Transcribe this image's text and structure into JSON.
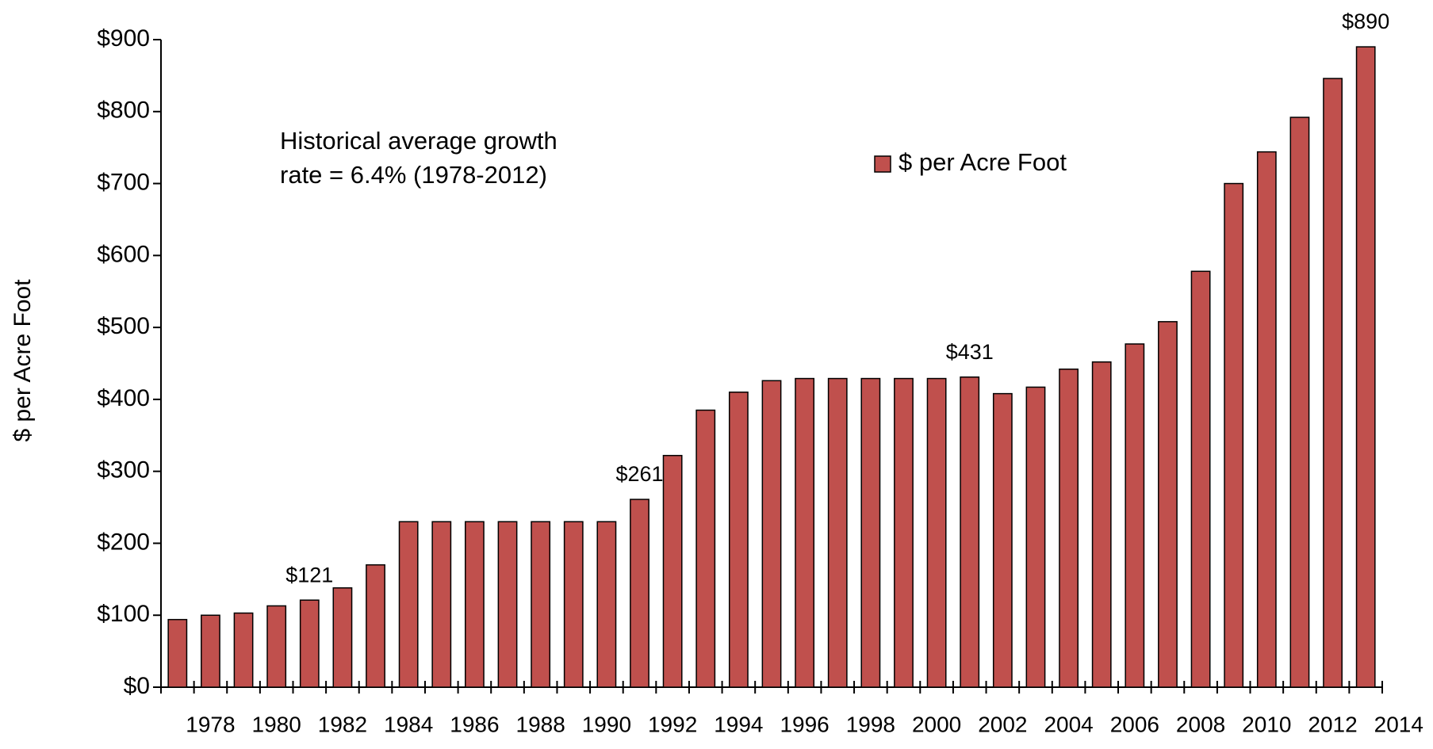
{
  "chart_data": {
    "type": "bar",
    "annotation": [
      "Historical average growth",
      "rate = 6.4% (1978-2012)"
    ],
    "y_label": "$ per Acre Foot",
    "categories": [
      "1978",
      null,
      "1980",
      null,
      "1982",
      null,
      "1984",
      null,
      "1986",
      null,
      "1988",
      null,
      "1990",
      null,
      "1992",
      null,
      "1994",
      null,
      "1996",
      null,
      "1998",
      null,
      "2000",
      null,
      "2002",
      null,
      "2004",
      null,
      "2006",
      null,
      "2008",
      null,
      "2010",
      null,
      "2012",
      null,
      "2014"
    ],
    "series": [
      {
        "name": "$ per Acre Foot",
        "color": "#c0504d",
        "values": [
          94,
          100,
          103,
          113,
          121,
          138,
          170,
          230,
          230,
          230,
          230,
          230,
          230,
          230,
          261,
          322,
          385,
          410,
          426,
          429,
          429,
          429,
          429,
          429,
          431,
          408,
          417,
          442,
          452,
          477,
          508,
          578,
          700,
          744,
          792,
          846,
          890
        ],
        "value_labels": [
          null,
          null,
          null,
          null,
          "$121",
          null,
          null,
          null,
          null,
          null,
          null,
          null,
          null,
          null,
          "$261",
          null,
          null,
          null,
          null,
          null,
          null,
          null,
          null,
          null,
          "$431",
          null,
          null,
          null,
          null,
          null,
          null,
          null,
          null,
          null,
          null,
          null,
          "$890"
        ]
      }
    ],
    "ylim": [
      0,
      900
    ],
    "yticks": [
      {
        "value": 0,
        "label": "$0"
      },
      {
        "value": 100,
        "label": "$100"
      },
      {
        "value": 200,
        "label": "$200"
      },
      {
        "value": 300,
        "label": "$300"
      },
      {
        "value": 400,
        "label": "$400"
      },
      {
        "value": 500,
        "label": "$500"
      },
      {
        "value": 600,
        "label": "$600"
      },
      {
        "value": 700,
        "label": "$700"
      },
      {
        "value": 800,
        "label": "$800"
      },
      {
        "value": 900,
        "label": "$900"
      }
    ],
    "grid": false,
    "legend": "top-right"
  }
}
